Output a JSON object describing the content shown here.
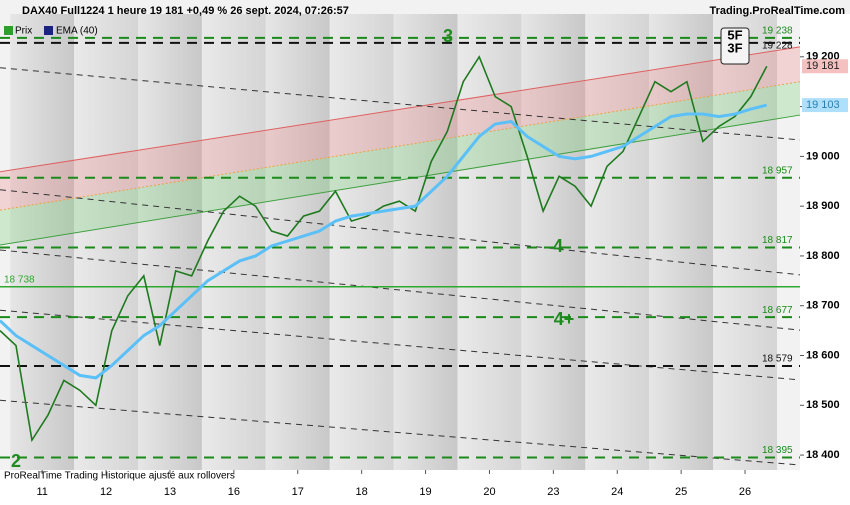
{
  "chart_data": {
    "type": "line",
    "title": "DAX40 Full1224 1 heure 19 181 +0,49 % 26 sept. 2024, 07:26:57",
    "source": "Trading.ProRealTime.com",
    "footer": "ProRealTime Trading  Historique ajusté aux rollovers",
    "x": [
      -0.66,
      -0.41,
      -0.16,
      0.09,
      0.34,
      0.59,
      0.84,
      1.09,
      1.34,
      1.59,
      1.84,
      2.09,
      2.34,
      2.59,
      2.84,
      3.09,
      3.34,
      3.59,
      3.84,
      4.09,
      4.34,
      4.59,
      4.84,
      5.09,
      5.34,
      5.59,
      5.84,
      6.09,
      6.34,
      6.59,
      6.84,
      7.09,
      7.34,
      7.59,
      7.84,
      8.09,
      8.34,
      8.59,
      8.84,
      9.09,
      9.34,
      9.59,
      9.84,
      10.09,
      10.34,
      10.59,
      10.84,
      11.09,
      11.34
    ],
    "series": [
      {
        "name": "Prix",
        "color": "#1f7a1f",
        "last_label": "19 181",
        "last_value": 19181,
        "values": [
          18650,
          18620,
          18430,
          18480,
          18550,
          18530,
          18500,
          18650,
          18720,
          18760,
          18620,
          18770,
          18760,
          18830,
          18890,
          18920,
          18900,
          18850,
          18840,
          18880,
          18890,
          18930,
          18870,
          18880,
          18900,
          18910,
          18890,
          18990,
          19050,
          19150,
          19200,
          19120,
          19100,
          19000,
          18890,
          18960,
          18940,
          18900,
          18980,
          19010,
          19080,
          19150,
          19130,
          19150,
          19030,
          19060,
          19080,
          19120,
          19181
        ]
      },
      {
        "name": "EMA (40)",
        "color": "#5bc0f8",
        "last_label": "19 103",
        "last_value": 19103,
        "values": [
          18670,
          18640,
          18620,
          18600,
          18580,
          18560,
          18555,
          18580,
          18610,
          18640,
          18660,
          18690,
          18720,
          18750,
          18770,
          18790,
          18800,
          18820,
          18830,
          18840,
          18850,
          18870,
          18880,
          18885,
          18890,
          18895,
          18900,
          18930,
          18960,
          19000,
          19040,
          19065,
          19070,
          19040,
          19020,
          19000,
          18995,
          19000,
          19010,
          19020,
          19040,
          19060,
          19080,
          19085,
          19085,
          19080,
          19085,
          19095,
          19103
        ]
      }
    ],
    "xlim": [
      -0.66,
      11.86
    ],
    "xticks": [
      {
        "value": 0,
        "label": "11"
      },
      {
        "value": 1,
        "label": "12"
      },
      {
        "value": 2,
        "label": "13"
      },
      {
        "value": 3,
        "label": "16"
      },
      {
        "value": 4,
        "label": "17"
      },
      {
        "value": 5,
        "label": "18"
      },
      {
        "value": 6,
        "label": "19"
      },
      {
        "value": 7,
        "label": "20"
      },
      {
        "value": 8,
        "label": "23"
      },
      {
        "value": 9,
        "label": "24"
      },
      {
        "value": 10,
        "label": "25"
      },
      {
        "value": 11,
        "label": "26"
      }
    ],
    "ylim": [
      18370,
      19286
    ],
    "yticks": [
      {
        "value": 18400,
        "label": "18 400"
      },
      {
        "value": 18500,
        "label": "18 500"
      },
      {
        "value": 18600,
        "label": "18 600"
      },
      {
        "value": 18700,
        "label": "18 700"
      },
      {
        "value": 18800,
        "label": "18 800"
      },
      {
        "value": 18900,
        "label": "18 900"
      },
      {
        "value": 19000,
        "label": "19 000"
      },
      {
        "value": 19100,
        "label": "19 100"
      },
      {
        "value": 19200,
        "label": "19 200"
      }
    ],
    "levels": [
      {
        "value": 19238,
        "label": "19 238",
        "color": "#1a8a1a",
        "style": "dashed"
      },
      {
        "value": 19228,
        "label": "19 228",
        "color": "#111111",
        "style": "dashed"
      },
      {
        "value": 18957,
        "label": "18 957",
        "color": "#1a8a1a",
        "style": "dashed"
      },
      {
        "value": 18817,
        "label": "18 817",
        "color": "#1a8a1a",
        "style": "dashed"
      },
      {
        "value": 18738,
        "label": "18 738",
        "color": "#2ea82e",
        "style": "solid"
      },
      {
        "value": 18677,
        "label": "18 677",
        "color": "#1a8a1a",
        "style": "dashed"
      },
      {
        "value": 18579,
        "label": "18 579",
        "color": "#111111",
        "style": "dashed"
      },
      {
        "value": 18395,
        "label": "18 395",
        "color": "#1a8a1a",
        "style": "dashed"
      }
    ],
    "channel": {
      "upper": [
        18969,
        19220
      ],
      "middle": [
        18892,
        19150
      ],
      "lower": [
        18822,
        19083
      ]
    },
    "trendlines": [
      [
        19178,
        19033
      ],
      [
        18933,
        18762
      ],
      [
        18812,
        18651
      ],
      [
        18691,
        18551
      ],
      [
        18510,
        18380
      ]
    ],
    "annotations": [
      "3",
      "4",
      "4+",
      "2"
    ],
    "badge": [
      "5F",
      "3F"
    ]
  }
}
